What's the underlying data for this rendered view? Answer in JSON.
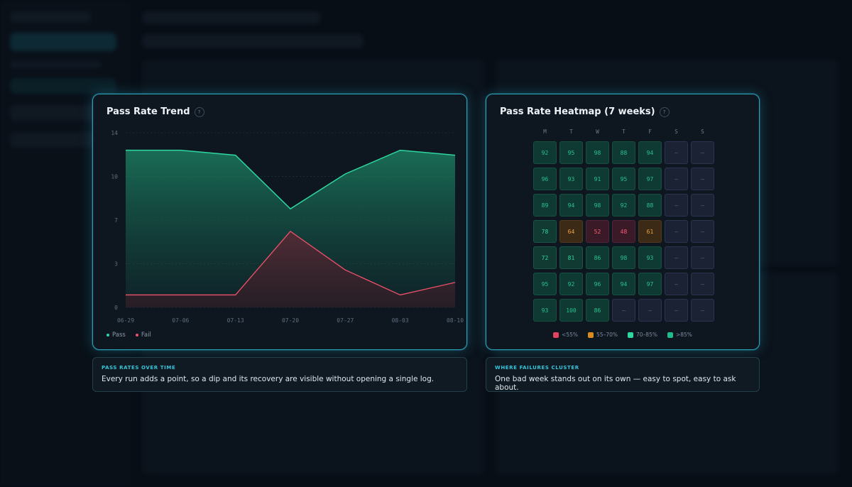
{
  "colors": {
    "accent": "#2fc7dc",
    "pass": "#2fd6a0",
    "fail": "#f0506a",
    "warn": "#e79a2c"
  },
  "trend_card": {
    "title": "Pass Rate Trend",
    "help_icon": "?",
    "legend": [
      {
        "label": "Pass",
        "color": "#2fd6a0"
      },
      {
        "label": "Fail",
        "color": "#f0506a"
      }
    ],
    "chart_data": {
      "type": "area",
      "x": [
        "06-29",
        "07-06",
        "07-13",
        "07-20",
        "07-27",
        "08-03",
        "08-10"
      ],
      "ylim": [
        0,
        14
      ],
      "yticks": [
        "14",
        "10",
        "7",
        "3",
        "0"
      ],
      "grid": true,
      "legend_position": "bottom-left",
      "series": [
        {
          "name": "Pass",
          "values": [
            12.6,
            12.6,
            12.2,
            7.9,
            10.7,
            12.6,
            12.2
          ]
        },
        {
          "name": "Fail",
          "values": [
            1.0,
            1.0,
            1.0,
            6.1,
            3.0,
            1.0,
            2.0
          ]
        }
      ]
    }
  },
  "heatmap_card": {
    "title": "Pass Rate Heatmap (7 weeks)",
    "help_icon": "?",
    "days": [
      "M",
      "T",
      "W",
      "T",
      "F",
      "S",
      "S"
    ],
    "rows": [
      [
        "92",
        "95",
        "98",
        "88",
        "94",
        "–",
        "–"
      ],
      [
        "96",
        "93",
        "91",
        "95",
        "97",
        "–",
        "–"
      ],
      [
        "89",
        "94",
        "98",
        "92",
        "88",
        "–",
        "–"
      ],
      [
        "78",
        "64",
        "52",
        "48",
        "61",
        "–",
        "–"
      ],
      [
        "72",
        "81",
        "86",
        "98",
        "93",
        "–",
        "–"
      ],
      [
        "95",
        "92",
        "96",
        "94",
        "97",
        "–",
        "–"
      ],
      [
        "93",
        "100",
        "86",
        "–",
        "–",
        "–",
        "–"
      ]
    ],
    "legend": [
      {
        "label": "<55%",
        "color": "#e5425d"
      },
      {
        "label": "55–70%",
        "color": "#d98a1f"
      },
      {
        "label": "70–85%",
        "color": "#2fd6a0"
      },
      {
        "label": ">85%",
        "color": "#1fb98a"
      }
    ]
  },
  "captions": [
    {
      "kicker": "PASS RATES OVER TIME",
      "text": "Every run adds a point, so a dip and its recovery are visible without opening a single log."
    },
    {
      "kicker": "WHERE FAILURES CLUSTER",
      "text": "One bad week stands out on its own — easy to spot, easy to ask about."
    }
  ]
}
